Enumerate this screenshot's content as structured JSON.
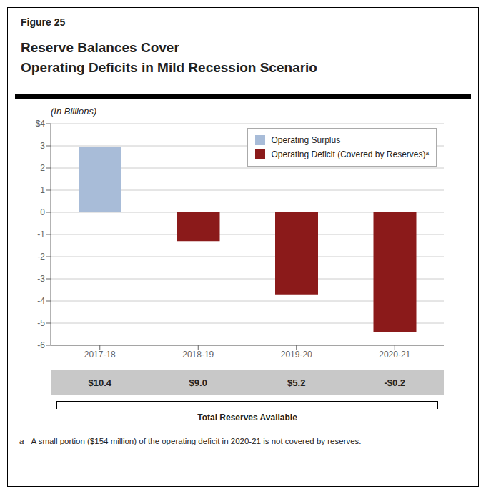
{
  "chart_data": {
    "type": "bar",
    "title": "Reserve Balances Cover\nOperating Deficits in Mild Recession Scenario",
    "subtitle": "(In Billions)",
    "categories": [
      "2017-18",
      "2018-19",
      "2019-20",
      "2020-21"
    ],
    "series": [
      {
        "name": "Operating Surplus",
        "color": "#a8bcd8",
        "values": [
          2.95,
          null,
          null,
          null
        ]
      },
      {
        "name": "Operating Deficit (Covered by Reserves)ᵃ",
        "color": "#8b1a1a",
        "values": [
          null,
          -1.3,
          -3.7,
          -5.4
        ]
      }
    ],
    "ylim": [
      -6,
      4
    ],
    "yticks": [
      -6,
      -5,
      -4,
      -3,
      -2,
      -1,
      0,
      1,
      2,
      3,
      {
        "value": 4,
        "label": "$4"
      }
    ],
    "grid": true,
    "legend": "upper right",
    "annotations": [
      "Figure 25",
      "$10.4",
      "$9.0",
      "$5.2",
      "-$0.2",
      "Total Reserves Available",
      "a",
      "A small portion ($154 million) of the operating deficit in 2020-21 is not covered by reserves."
    ]
  }
}
